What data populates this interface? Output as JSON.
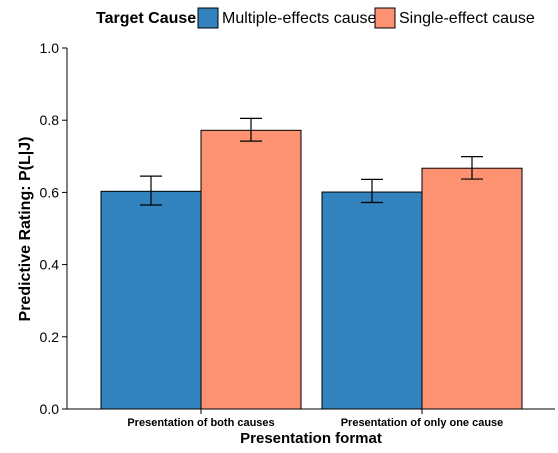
{
  "chart_data": {
    "type": "bar",
    "title": "",
    "xlabel": "Presentation format",
    "ylabel": "Predictive Rating: P(L|J)",
    "ylim": [
      0.0,
      1.0
    ],
    "yticks": [
      "0.0",
      "0.2",
      "0.4",
      "0.6",
      "0.8",
      "1.0"
    ],
    "yticks_values": [
      0.0,
      0.2,
      0.4,
      0.6,
      0.8,
      1.0
    ],
    "categories": [
      "Presentation of both causes",
      "Presentation of only one cause"
    ],
    "legend": {
      "title": "Target Cause",
      "position": "top"
    },
    "grid": false,
    "series": [
      {
        "name": "Multiple-effects cause",
        "color": "#3182bd",
        "values": [
          0.603,
          0.601
        ],
        "error_low": [
          0.565,
          0.572
        ],
        "error_high": [
          0.645,
          0.636
        ]
      },
      {
        "name": "Single-effect cause",
        "color": "#fc9272",
        "values": [
          0.772,
          0.667
        ],
        "error_low": [
          0.742,
          0.637
        ],
        "error_high": [
          0.805,
          0.699
        ]
      }
    ]
  }
}
